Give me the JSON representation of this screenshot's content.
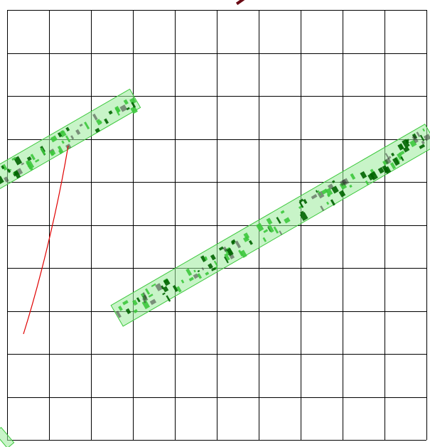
{
  "colors": {
    "background": "#ffffff",
    "grid": "#000000",
    "stamp_fill": "#3cc83c",
    "stamp_dark": "#006400",
    "stamp_light": "#9aeb9a",
    "curve": "#e00000",
    "top_mark": "#6a0a14"
  },
  "grid": {
    "rows": 10,
    "cols": 10
  },
  "stamps": [
    {
      "name": "stamp-band-left"
    },
    {
      "name": "stamp-band-main"
    },
    {
      "name": "stamp-band-corner"
    }
  ],
  "curve": {
    "name": "red-curve"
  },
  "top_mark": {
    "name": "top-edge-mark"
  }
}
